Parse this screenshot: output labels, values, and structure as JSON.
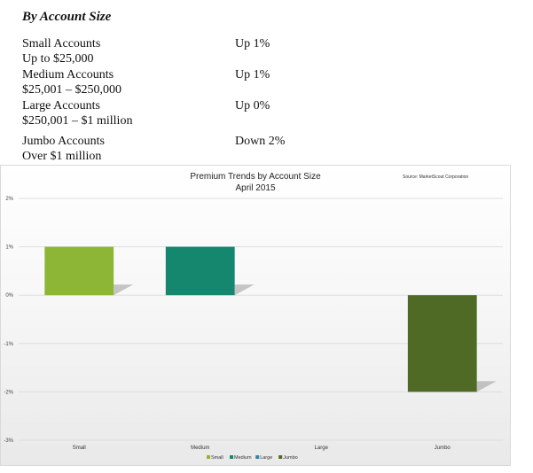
{
  "heading": "By Account Size",
  "accounts": [
    {
      "name": "Small Accounts",
      "range": "Up to $25,000",
      "change": "Up 1%"
    },
    {
      "name": "Medium Accounts",
      "range": "$25,001 – $250,000",
      "change": "Up 1%"
    },
    {
      "name": "Large Accounts",
      "range": "$250,001 – $1 million",
      "change": "Up 0%"
    },
    {
      "name": "Jumbo Accounts",
      "range": "Over $1 million",
      "change": "Down 2%"
    }
  ],
  "chart_data": {
    "type": "bar",
    "title": "Premium Trends by Account Size",
    "subtitle": "April 2015",
    "source": "Source: MarketScout Corporation",
    "categories": [
      "Small",
      "Medium",
      "Large",
      "Jumbo"
    ],
    "values": [
      1,
      1,
      0,
      -2
    ],
    "colors": [
      "#8db637",
      "#15876f",
      "#2f88a8",
      "#4f6a24"
    ],
    "ylim": [
      -3,
      2
    ],
    "yticks": [
      "-3%",
      "-2%",
      "-1%",
      "0%",
      "1%",
      "2%"
    ],
    "grid": true,
    "legend": {
      "position": "bottom",
      "items": [
        {
          "label": "Small",
          "color": "#8db637"
        },
        {
          "label": "Medium",
          "color": "#15876f"
        },
        {
          "label": "Large",
          "color": "#2f88a8"
        },
        {
          "label": "Jumbo",
          "color": "#4f6a24"
        }
      ]
    }
  }
}
